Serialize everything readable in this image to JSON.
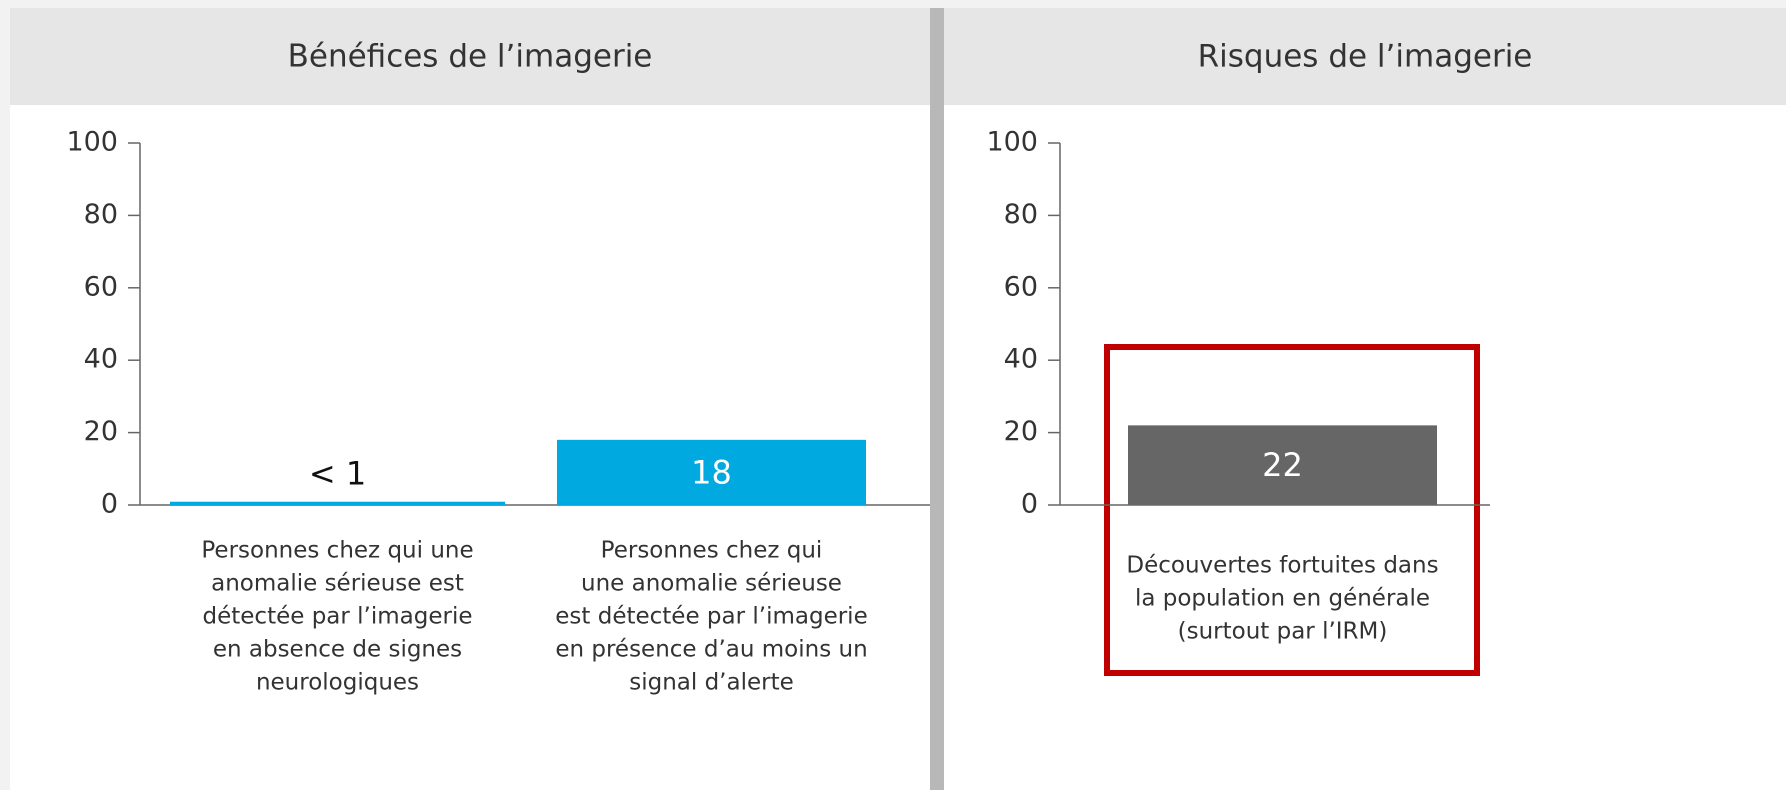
{
  "chart_data": [
    {
      "type": "bar",
      "title": "Bénéfices de l’imagerie",
      "categories": [
        [
          "Personnes chez qui une",
          "anomalie sérieuse est",
          "détectée par l’imagerie",
          "en absence de signes",
          "neurologiques"
        ],
        [
          "Personnes chez qui",
          "une anomalie sérieuse",
          "est détectée par l’imagerie",
          "en présence d’au moins un",
          "signal d’alerte"
        ]
      ],
      "values": [
        0.9,
        18
      ],
      "value_labels": [
        "< 1",
        "18"
      ],
      "color": "#00a9e0",
      "ylim": [
        0,
        100
      ],
      "yticks": [
        0,
        20,
        40,
        60,
        80,
        100
      ]
    },
    {
      "type": "bar",
      "title": "Risques de l’imagerie",
      "categories": [
        [
          "Découvertes fortuites dans",
          "la population en générale",
          "(surtout par l’IRM)"
        ]
      ],
      "values": [
        22
      ],
      "value_labels": [
        "22"
      ],
      "color": "#666666",
      "ylim": [
        0,
        100
      ],
      "yticks": [
        0,
        20,
        40,
        60,
        80,
        100
      ]
    }
  ]
}
